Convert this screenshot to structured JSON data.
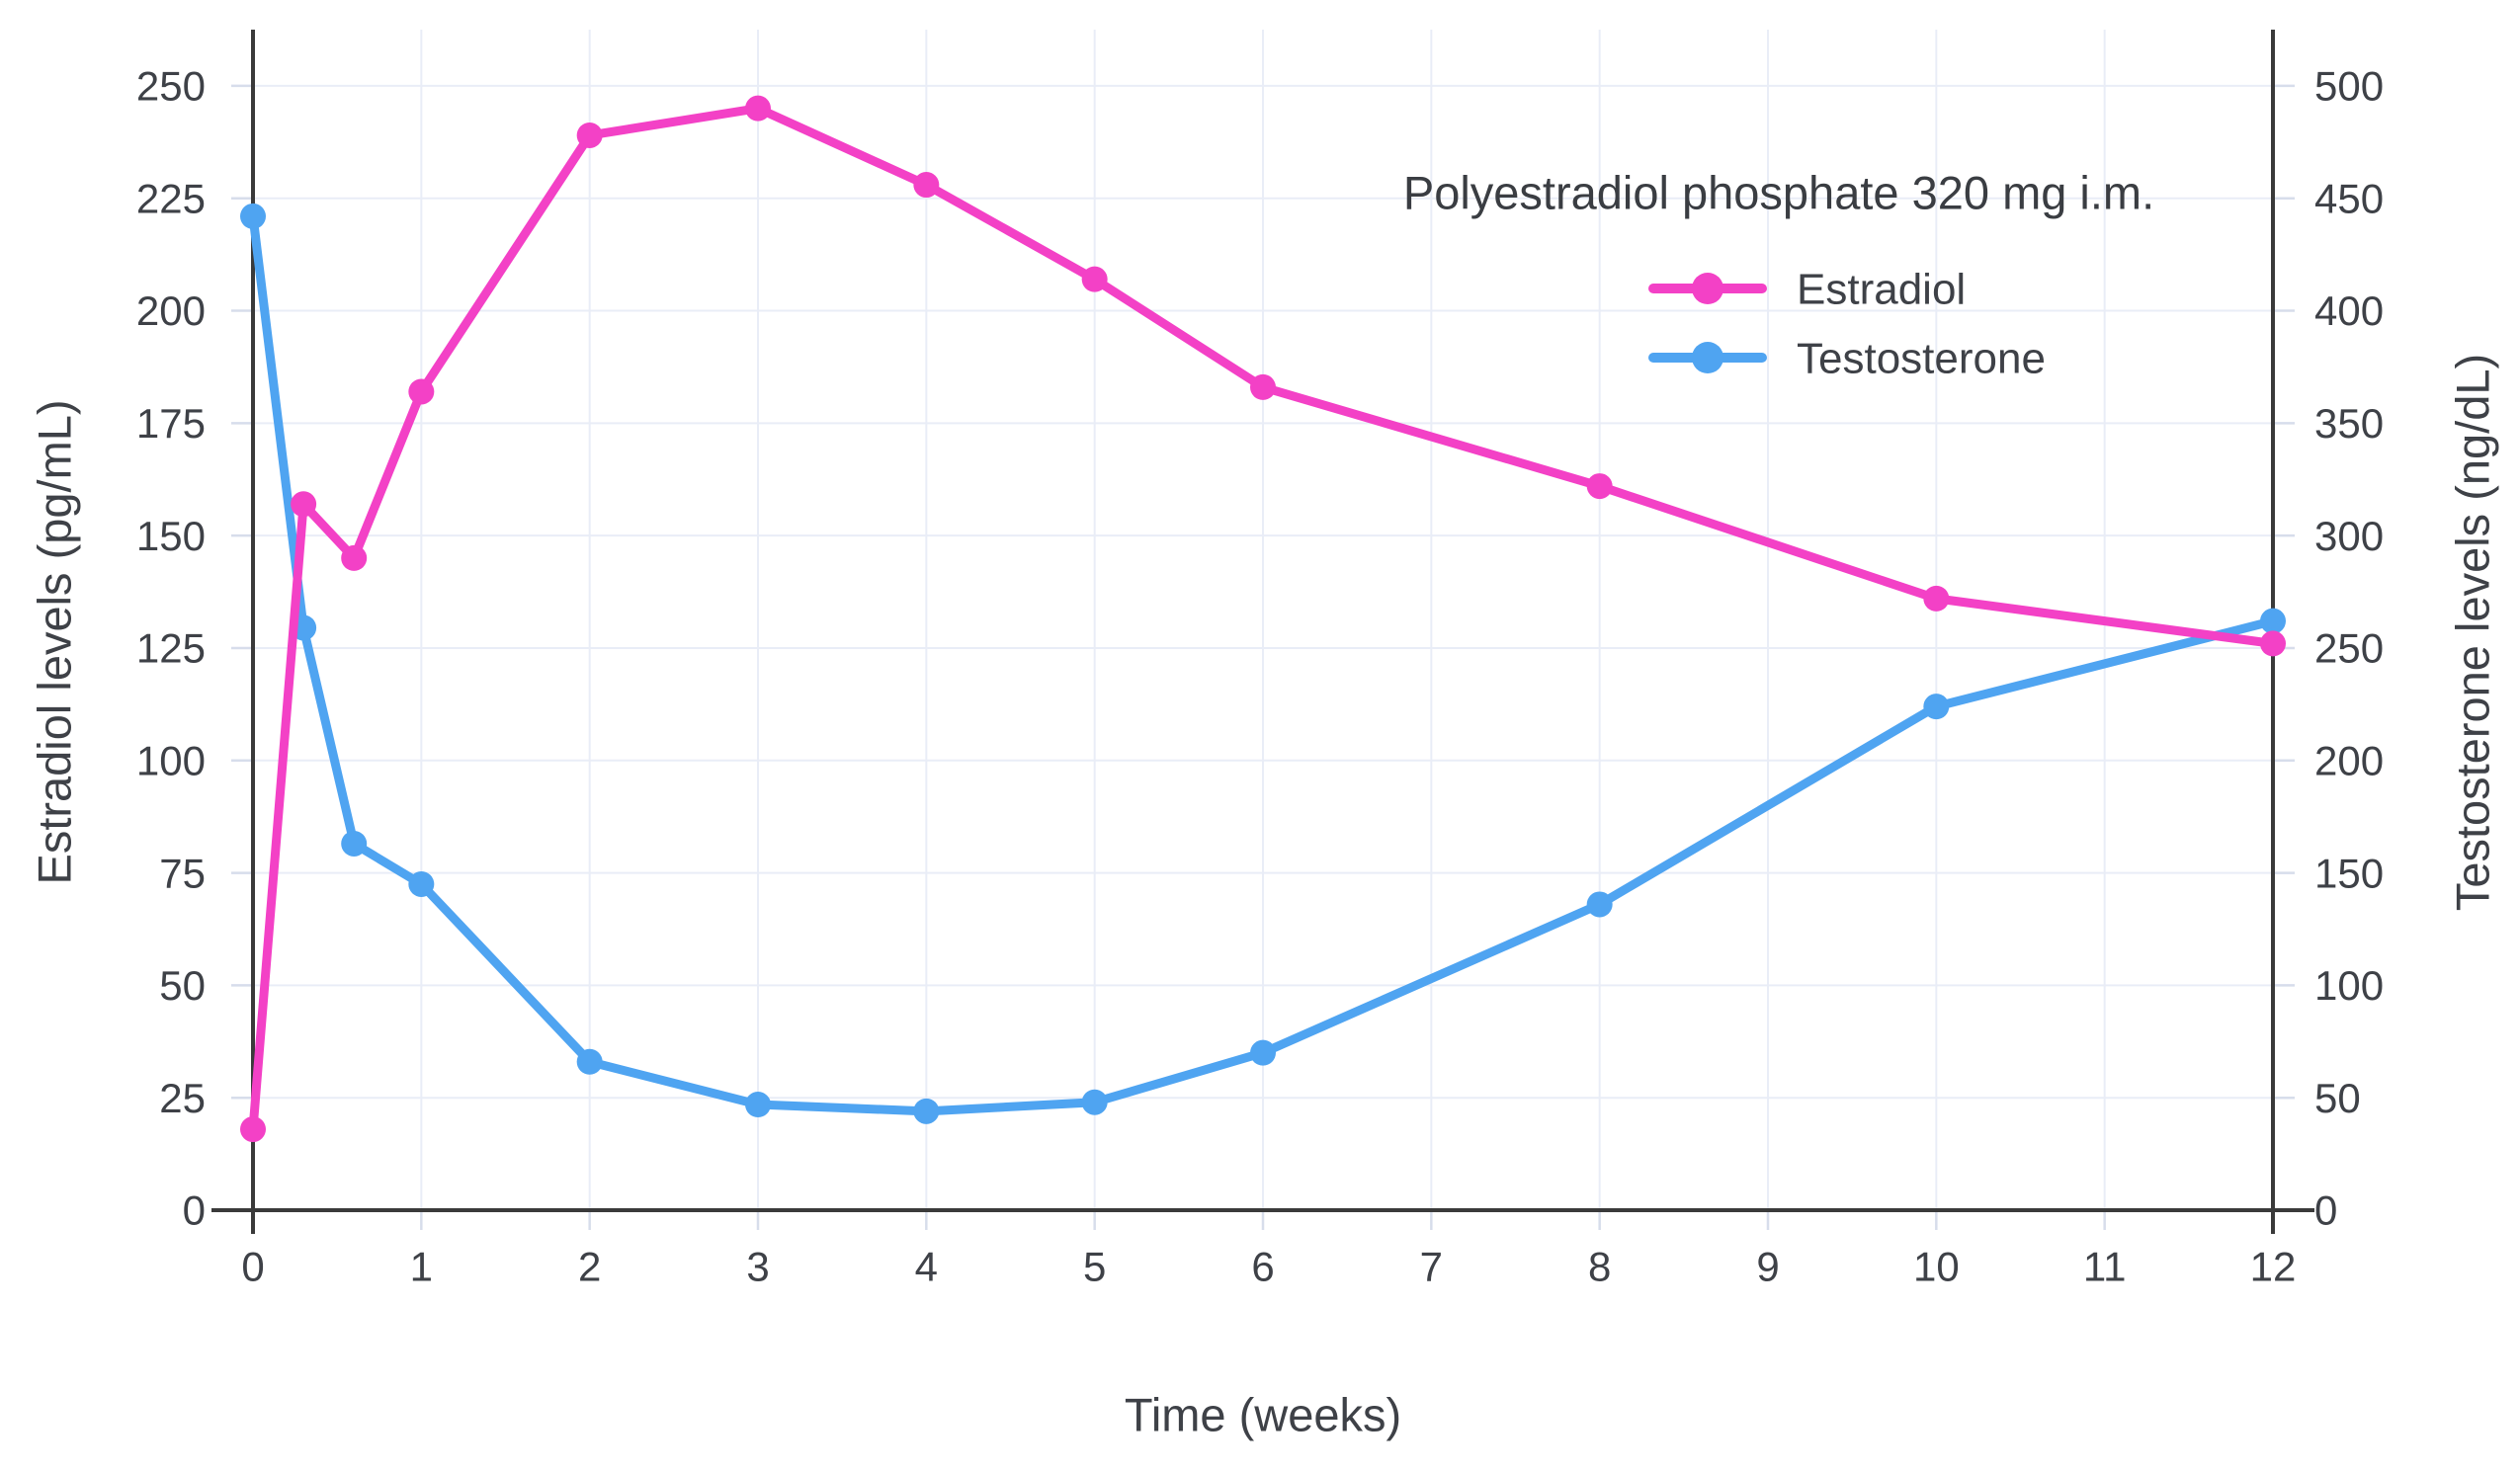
{
  "colors": {
    "estradiol": "#F341C6",
    "testosterone": "#4FA4F1",
    "grid": "#E9EDF7",
    "minor_tick": "#D7DDEB",
    "axis": "#3A3A3A",
    "text": "#3E4147",
    "background": "#FFFFFF"
  },
  "chart_data": {
    "type": "line",
    "title": "Polyestradiol phosphate 320 mg i.m.",
    "xlabel": "Time (weeks)",
    "ylabel_left": "Estradiol levels (pg/mL)",
    "ylabel_right": "Testosterone levels (ng/dL)",
    "x": [
      0,
      0.3,
      0.6,
      1,
      2,
      3,
      4,
      5,
      6,
      8,
      10,
      12
    ],
    "x_ticks": [
      0,
      1,
      2,
      3,
      4,
      5,
      6,
      7,
      8,
      9,
      10,
      11,
      12
    ],
    "x_range": [
      0,
      12
    ],
    "y_left_ticks": [
      0,
      25,
      50,
      75,
      100,
      125,
      150,
      175,
      200,
      225,
      250
    ],
    "y_right_ticks": [
      0,
      50,
      100,
      150,
      200,
      250,
      300,
      350,
      400,
      450,
      500
    ],
    "y_left_range": [
      0,
      262.5
    ],
    "y_right_range": [
      0,
      525
    ],
    "grid": true,
    "legend_position": "top-right-inside",
    "series": [
      {
        "name": "Testosterone",
        "axis": "right",
        "unit": "ng/dL",
        "color": "#4FA4F1",
        "values": [
          442,
          259,
          163,
          145,
          66,
          47,
          44,
          48,
          70,
          136,
          224,
          262
        ]
      },
      {
        "name": "Estradiol",
        "axis": "left",
        "unit": "pg/mL",
        "color": "#F341C6",
        "values": [
          18,
          157,
          145,
          182,
          239,
          245,
          228,
          207,
          183,
          161,
          136,
          126
        ]
      }
    ],
    "legend_order": [
      "Estradiol",
      "Testosterone"
    ]
  }
}
